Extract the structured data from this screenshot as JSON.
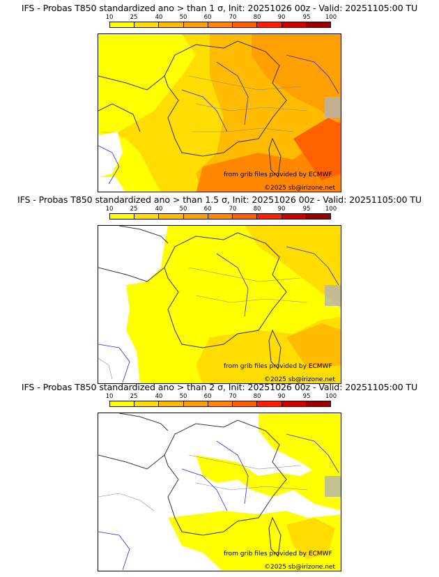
{
  "legend": {
    "ticks": [
      "10",
      "25",
      "40",
      "50",
      "60",
      "70",
      "80",
      "90",
      "95",
      "100"
    ],
    "colors": [
      "#ffff00",
      "#ffdd00",
      "#ffbb00",
      "#ffa000",
      "#ff8800",
      "#ff6000",
      "#ff2000",
      "#cc0000",
      "#990000",
      "#660000"
    ]
  },
  "panels": [
    {
      "title": "IFS - Probas T850  standardized ano > than 1 σ, Init: 20251026 00z - Valid: 20251105:00 TU",
      "credit_source": "from grib files provided by ECMWF",
      "credit_copyright": "©2025 sb@irizone.net"
    },
    {
      "title": "IFS - Probas T850  standardized ano > than 1.5 σ, Init: 20251026 00z - Valid: 20251105:00 TU",
      "credit_source": "from grib files provided by ECMWF",
      "credit_copyright": "©2025 sb@irizone.net"
    },
    {
      "title": "IFS - Probas T850  standardized ano > than 2 σ, Init: 20251026 00z - Valid: 20251105:00 TU",
      "credit_source": "from grib files provided by ECMWF",
      "credit_copyright": "©2025 sb@irizone.net"
    }
  ]
}
